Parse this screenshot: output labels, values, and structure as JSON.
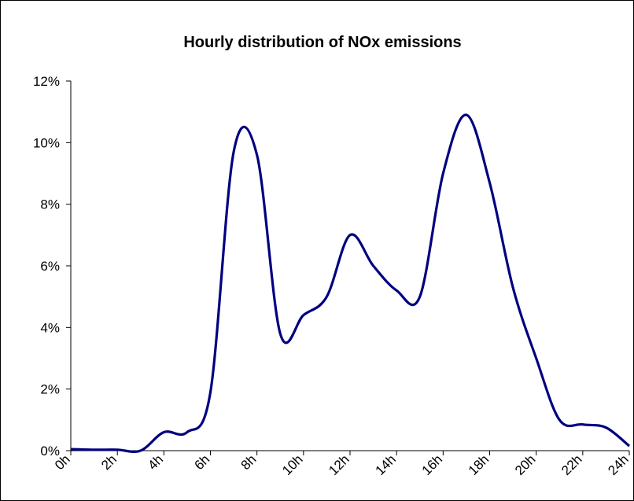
{
  "chart_data": {
    "type": "line",
    "title": "Hourly distribution of NOx emissions",
    "categories": [
      "0h",
      null,
      "2h",
      null,
      "4h",
      null,
      "6h",
      null,
      "8h",
      null,
      "10h",
      null,
      "12h",
      null,
      "14h",
      null,
      "16h",
      null,
      "18h",
      null,
      "20h",
      null,
      "22h",
      null,
      "24h"
    ],
    "series": [
      {
        "name": "NOx",
        "color": "#000080",
        "values": [
          0.05,
          0.03,
          0.03,
          0.0,
          0.6,
          0.6,
          1.9,
          9.7,
          9.6,
          3.8,
          4.4,
          5.0,
          7.0,
          6.0,
          5.2,
          5.0,
          9.0,
          10.9,
          8.7,
          5.3,
          3.0,
          1.0,
          0.85,
          0.75,
          0.15
        ]
      }
    ],
    "ylim": [
      0,
      12
    ],
    "yticks": [
      {
        "value": 0,
        "label": "0%"
      },
      {
        "value": 2,
        "label": "2%"
      },
      {
        "value": 4,
        "label": "4%"
      },
      {
        "value": 6,
        "label": "6%"
      },
      {
        "value": 8,
        "label": "8%"
      },
      {
        "value": 10,
        "label": "10%"
      },
      {
        "value": 12,
        "label": "12%"
      }
    ],
    "grid": false
  }
}
